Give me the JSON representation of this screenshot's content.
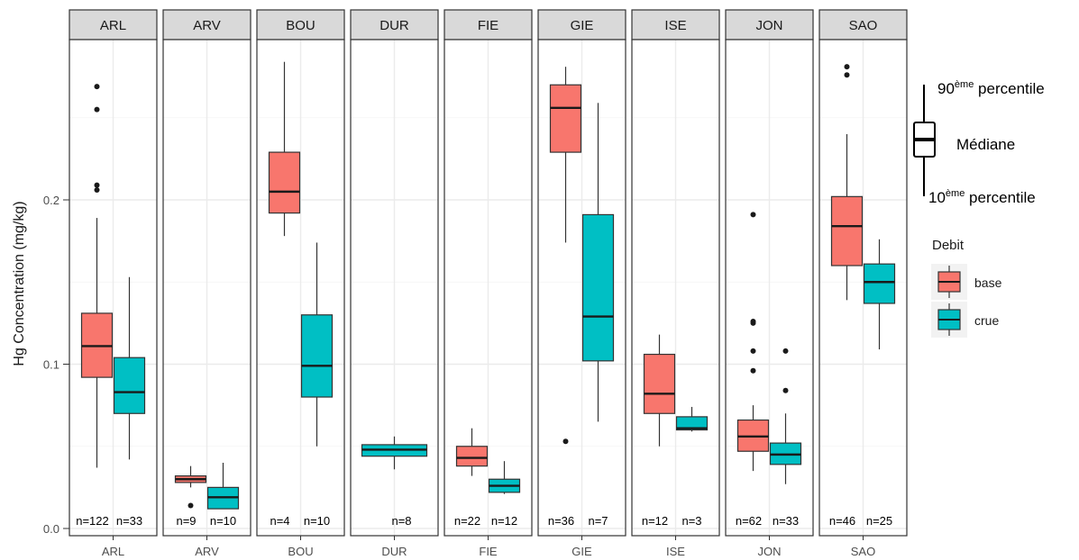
{
  "chart_data": {
    "type": "boxplot",
    "ylabel": "Hg Concentration (mg/kg)",
    "xlabel": "",
    "ylim": [
      0,
      0.3
    ],
    "yticks": [
      0.0,
      0.1,
      0.2
    ],
    "ytick_labels": [
      "0.0",
      "0.1",
      "0.2"
    ],
    "grid": true,
    "facet_by": "site",
    "series_colors": {
      "base": "#F8766D",
      "crue": "#00BFC4"
    },
    "legend": {
      "title": "Debit",
      "position": "right",
      "items": [
        {
          "label": "base",
          "color": "#F8766D"
        },
        {
          "label": "crue",
          "color": "#00BFC4"
        }
      ]
    },
    "panels": [
      {
        "site": "ARL",
        "boxes": [
          {
            "group": "base",
            "n_label": "n=122",
            "whisker_low": 0.037,
            "q1": 0.092,
            "median": 0.111,
            "q3": 0.131,
            "whisker_high": 0.189,
            "outliers": [
              0.206,
              0.209,
              0.255,
              0.269
            ]
          },
          {
            "group": "crue",
            "n_label": "n=33",
            "whisker_low": 0.042,
            "q1": 0.07,
            "median": 0.083,
            "q3": 0.104,
            "whisker_high": 0.153,
            "outliers": []
          }
        ]
      },
      {
        "site": "ARV",
        "boxes": [
          {
            "group": "base",
            "n_label": "n=9",
            "whisker_low": 0.025,
            "q1": 0.028,
            "median": 0.03,
            "q3": 0.032,
            "whisker_high": 0.038,
            "outliers": [
              0.014
            ]
          },
          {
            "group": "crue",
            "n_label": "n=10",
            "whisker_low": 0.012,
            "q1": 0.012,
            "median": 0.019,
            "q3": 0.025,
            "whisker_high": 0.04,
            "outliers": []
          }
        ]
      },
      {
        "site": "BOU",
        "boxes": [
          {
            "group": "base",
            "n_label": "n=4",
            "whisker_low": 0.178,
            "q1": 0.192,
            "median": 0.205,
            "q3": 0.229,
            "whisker_high": 0.284,
            "outliers": []
          },
          {
            "group": "crue",
            "n_label": "n=10",
            "whisker_low": 0.05,
            "q1": 0.08,
            "median": 0.099,
            "q3": 0.13,
            "whisker_high": 0.174,
            "outliers": []
          }
        ]
      },
      {
        "site": "DUR",
        "boxes": [
          {
            "group": "crue",
            "n_label": "n=8",
            "whisker_low": 0.036,
            "q1": 0.044,
            "median": 0.048,
            "q3": 0.051,
            "whisker_high": 0.056,
            "outliers": []
          }
        ]
      },
      {
        "site": "FIE",
        "boxes": [
          {
            "group": "base",
            "n_label": "n=22",
            "whisker_low": 0.032,
            "q1": 0.038,
            "median": 0.043,
            "q3": 0.05,
            "whisker_high": 0.061,
            "outliers": []
          },
          {
            "group": "crue",
            "n_label": "n=12",
            "whisker_low": 0.021,
            "q1": 0.022,
            "median": 0.026,
            "q3": 0.03,
            "whisker_high": 0.041,
            "outliers": []
          }
        ]
      },
      {
        "site": "GIE",
        "boxes": [
          {
            "group": "base",
            "n_label": "n=36",
            "whisker_low": 0.174,
            "q1": 0.229,
            "median": 0.256,
            "q3": 0.27,
            "whisker_high": 0.281,
            "outliers": [
              0.053
            ]
          },
          {
            "group": "crue",
            "n_label": "n=7",
            "whisker_low": 0.065,
            "q1": 0.102,
            "median": 0.129,
            "q3": 0.191,
            "whisker_high": 0.259,
            "outliers": []
          }
        ]
      },
      {
        "site": "ISE",
        "boxes": [
          {
            "group": "base",
            "n_label": "n=12",
            "whisker_low": 0.05,
            "q1": 0.07,
            "median": 0.082,
            "q3": 0.106,
            "whisker_high": 0.118,
            "outliers": []
          },
          {
            "group": "crue",
            "n_label": "n=3",
            "whisker_low": 0.059,
            "q1": 0.06,
            "median": 0.061,
            "q3": 0.068,
            "whisker_high": 0.074,
            "outliers": []
          }
        ]
      },
      {
        "site": "JON",
        "boxes": [
          {
            "group": "base",
            "n_label": "n=62",
            "whisker_low": 0.035,
            "q1": 0.047,
            "median": 0.056,
            "q3": 0.066,
            "whisker_high": 0.075,
            "outliers": [
              0.096,
              0.108,
              0.125,
              0.126,
              0.191
            ]
          },
          {
            "group": "crue",
            "n_label": "n=33",
            "whisker_low": 0.027,
            "q1": 0.039,
            "median": 0.045,
            "q3": 0.052,
            "whisker_high": 0.07,
            "outliers": [
              0.084,
              0.108
            ]
          }
        ]
      },
      {
        "site": "SAO",
        "boxes": [
          {
            "group": "base",
            "n_label": "n=46",
            "whisker_low": 0.139,
            "q1": 0.16,
            "median": 0.184,
            "q3": 0.202,
            "whisker_high": 0.24,
            "outliers": [
              0.276,
              0.281
            ]
          },
          {
            "group": "crue",
            "n_label": "n=25",
            "whisker_low": 0.109,
            "q1": 0.137,
            "median": 0.15,
            "q3": 0.161,
            "whisker_high": 0.176,
            "outliers": []
          }
        ]
      }
    ]
  },
  "key_annotation": {
    "top_label": "90",
    "top_sup": "ème",
    "top_rest": " percentile",
    "middle_label": "Médiane",
    "bottom_label": "10",
    "bottom_sup": "ème",
    "bottom_rest": " percentile"
  }
}
